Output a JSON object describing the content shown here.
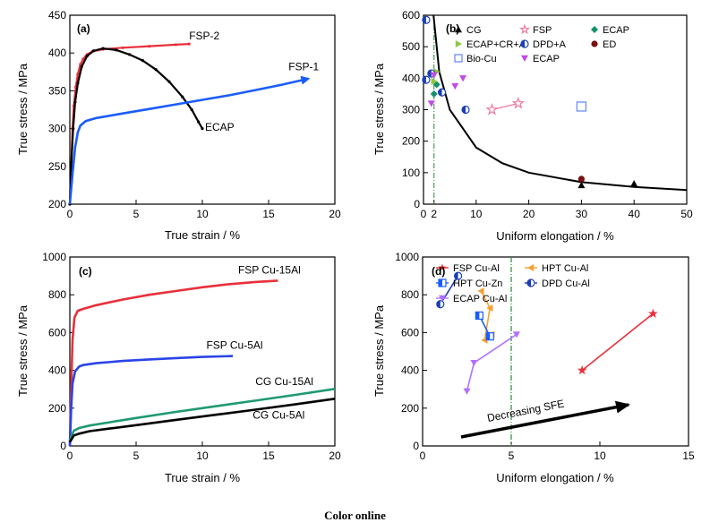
{
  "caption": "Color online",
  "chart_data": [
    {
      "panel": "(a)",
      "type": "line",
      "xlabel": "True strain / %",
      "ylabel": "True stress / MPa",
      "xlim": [
        0,
        20
      ],
      "ylim": [
        200,
        450
      ],
      "xticks": [
        0,
        5,
        10,
        15,
        20
      ],
      "yticks": [
        200,
        250,
        300,
        350,
        400,
        450
      ],
      "series": [
        {
          "name": "FSP-2",
          "color": "#e8303a",
          "marker": "dot",
          "points": [
            [
              0,
              200
            ],
            [
              0.1,
              250
            ],
            [
              0.2,
              300
            ],
            [
              0.3,
              330
            ],
            [
              0.45,
              355
            ],
            [
              0.6,
              372
            ],
            [
              0.8,
              385
            ],
            [
              1.0,
              392
            ],
            [
              1.3,
              398
            ],
            [
              1.7,
              402
            ],
            [
              2.5,
              405
            ],
            [
              4,
              407
            ],
            [
              6,
              409
            ],
            [
              8,
              411
            ],
            [
              9,
              412
            ]
          ]
        },
        {
          "name": "ECAP",
          "color": "#000000",
          "marker": "dot",
          "points": [
            [
              0,
              200
            ],
            [
              0.1,
              250
            ],
            [
              0.25,
              300
            ],
            [
              0.4,
              335
            ],
            [
              0.6,
              360
            ],
            [
              0.9,
              382
            ],
            [
              1.3,
              396
            ],
            [
              1.8,
              403
            ],
            [
              2.5,
              406
            ],
            [
              3.5,
              404
            ],
            [
              4.5,
              398
            ],
            [
              5.5,
              390
            ],
            [
              6.5,
              378
            ],
            [
              7.5,
              362
            ],
            [
              8.5,
              342
            ],
            [
              9.2,
              325
            ],
            [
              9.7,
              309
            ],
            [
              10,
              300
            ]
          ]
        },
        {
          "name": "FSP-1",
          "color": "#1a5cff",
          "marker": "none",
          "arrow": true,
          "points": [
            [
              0,
              200
            ],
            [
              0.2,
              240
            ],
            [
              0.4,
              275
            ],
            [
              0.6,
              295
            ],
            [
              0.8,
              304
            ],
            [
              1.2,
              310
            ],
            [
              2,
              314
            ],
            [
              4,
              320
            ],
            [
              6,
              326
            ],
            [
              8,
              332
            ],
            [
              10,
              338
            ],
            [
              12,
              344
            ],
            [
              14,
              351
            ],
            [
              16,
              358
            ],
            [
              18,
              366
            ]
          ]
        }
      ],
      "annotations": [
        {
          "text": "FSP-2",
          "x": 9.0,
          "y": 418
        },
        {
          "text": "FSP-1",
          "x": 16.5,
          "y": 377
        },
        {
          "text": "ECAP",
          "x": 10.2,
          "y": 297
        }
      ]
    },
    {
      "panel": "(b)",
      "type": "scatter",
      "xlabel": "Uniform elongation / %",
      "ylabel": "True stress / MPa",
      "xlim": [
        0,
        50
      ],
      "ylim": [
        0,
        600
      ],
      "xticks": [
        0,
        2,
        10,
        20,
        30,
        40,
        50
      ],
      "yticks": [
        0,
        100,
        200,
        300,
        400,
        500,
        600
      ],
      "legend": [
        {
          "name": "CG",
          "color": "#000000",
          "marker": "triangle"
        },
        {
          "name": "FSP",
          "color": "#f07aa0",
          "marker": "star-open"
        },
        {
          "name": "ECAP",
          "color": "#12906a",
          "marker": "diamond"
        },
        {
          "name": "ECAP+CR+A",
          "color": "#8ec63f",
          "marker": "tri-right"
        },
        {
          "name": "DPD+A",
          "color": "#1a3fb5",
          "marker": "half-circle"
        },
        {
          "name": "ED",
          "color": "#7a1010",
          "marker": "circle"
        },
        {
          "name": "Bio-Cu",
          "color": "#6a8cff",
          "marker": "square-open"
        },
        {
          "name": "ECAP",
          "color": "#c04be8",
          "marker": "tri-down"
        }
      ],
      "series": [
        {
          "name": "CG",
          "points": [
            [
              30,
              60
            ],
            [
              40,
              65
            ]
          ]
        },
        {
          "name": "FSP",
          "points": [
            [
              13,
              300
            ],
            [
              18,
              320
            ]
          ],
          "connected": true
        },
        {
          "name": "ECAP",
          "points": [
            [
              2,
              350
            ],
            [
              2.5,
              380
            ]
          ]
        },
        {
          "name": "ECAP+CR+A",
          "points": [
            [
              1.5,
              415
            ],
            [
              2.5,
              420
            ],
            [
              2,
              390
            ]
          ]
        },
        {
          "name": "DPD+A",
          "points": [
            [
              0.5,
              585
            ],
            [
              0.5,
              395
            ],
            [
              1.5,
              415
            ],
            [
              3.5,
              355
            ],
            [
              8,
              300
            ]
          ]
        },
        {
          "name": "ED",
          "points": [
            [
              30,
              80
            ]
          ]
        },
        {
          "name": "Bio-Cu",
          "points": [
            [
              30,
              310
            ]
          ]
        },
        {
          "name": "ECAP",
          "points": [
            [
              1.5,
              320
            ],
            [
              6,
              375
            ],
            [
              7.5,
              400
            ],
            [
              2,
              410
            ]
          ]
        }
      ],
      "fit_curve": "hyperbola",
      "fit_points": [
        [
          1.9,
          600
        ],
        [
          3,
          420
        ],
        [
          5,
          300
        ],
        [
          10,
          180
        ],
        [
          15,
          130
        ],
        [
          20,
          100
        ],
        [
          30,
          70
        ],
        [
          40,
          55
        ],
        [
          50,
          45
        ]
      ],
      "reference_line_x": 2
    },
    {
      "panel": "(c)",
      "type": "line",
      "xlabel": "True strain / %",
      "ylabel": "True stress / MPa",
      "xlim": [
        0,
        20
      ],
      "ylim": [
        0,
        1000
      ],
      "xticks": [
        0,
        5,
        10,
        15,
        20
      ],
      "yticks": [
        0,
        200,
        400,
        600,
        800,
        1000
      ],
      "series": [
        {
          "name": "FSP Cu-15Al",
          "color": "#e8303a",
          "points": [
            [
              0,
              0
            ],
            [
              0.1,
              300
            ],
            [
              0.2,
              560
            ],
            [
              0.35,
              680
            ],
            [
              0.6,
              715
            ],
            [
              1,
              725
            ],
            [
              2,
              745
            ],
            [
              4,
              775
            ],
            [
              6,
              800
            ],
            [
              8,
              820
            ],
            [
              10,
              840
            ],
            [
              12,
              856
            ],
            [
              14,
              868
            ],
            [
              15.7,
              875
            ]
          ]
        },
        {
          "name": "FSP Cu-5Al",
          "color": "#2a44e8",
          "points": [
            [
              0,
              0
            ],
            [
              0.1,
              200
            ],
            [
              0.2,
              330
            ],
            [
              0.4,
              395
            ],
            [
              0.7,
              420
            ],
            [
              1,
              428
            ],
            [
              2,
              438
            ],
            [
              4,
              450
            ],
            [
              6,
              458
            ],
            [
              8,
              465
            ],
            [
              10,
              471
            ],
            [
              12.3,
              476
            ]
          ]
        },
        {
          "name": "CG Cu-15Al",
          "color": "#1f9a6e",
          "points": [
            [
              0,
              30
            ],
            [
              0.3,
              80
            ],
            [
              0.7,
              95
            ],
            [
              1.5,
              108
            ],
            [
              3,
              125
            ],
            [
              5,
              148
            ],
            [
              8,
              180
            ],
            [
              11,
              210
            ],
            [
              14,
              240
            ],
            [
              17,
              270
            ],
            [
              20,
              302
            ]
          ]
        },
        {
          "name": "CG Cu-5Al",
          "color": "#000000",
          "points": [
            [
              0,
              20
            ],
            [
              0.3,
              55
            ],
            [
              0.7,
              65
            ],
            [
              1.5,
              78
            ],
            [
              3,
              92
            ],
            [
              5,
              110
            ],
            [
              8,
              138
            ],
            [
              11,
              165
            ],
            [
              14,
              192
            ],
            [
              17,
              220
            ],
            [
              20,
              250
            ]
          ]
        }
      ],
      "annotations": [
        {
          "text": "FSP Cu-15Al",
          "x": 12.7,
          "y": 912
        },
        {
          "text": "FSP Cu-5Al",
          "x": 10.3,
          "y": 515
        },
        {
          "text": "CG Cu-15Al",
          "x": 14.0,
          "y": 322
        },
        {
          "text": "CG Cu-5Al",
          "x": 13.8,
          "y": 145
        }
      ]
    },
    {
      "panel": "(d)",
      "type": "scatter",
      "xlabel": "Uniform elongation / %",
      "ylabel": "True stress / MPa",
      "xlim": [
        0,
        15
      ],
      "ylim": [
        0,
        1000
      ],
      "xticks": [
        0,
        5,
        10,
        15
      ],
      "yticks": [
        0,
        200,
        400,
        600,
        800,
        1000
      ],
      "legend": [
        {
          "name": "FSP Cu-Al",
          "color": "#e8303a",
          "marker": "star"
        },
        {
          "name": "HPT Cu-Al",
          "color": "#f5a030",
          "marker": "tri-left"
        },
        {
          "name": "HPT Cu-Zn",
          "color": "#1a5cff",
          "marker": "half-square"
        },
        {
          "name": "DPD Cu-Al",
          "color": "#1a3fb5",
          "marker": "half-circle"
        },
        {
          "name": "ECAP Cu-Al",
          "color": "#b270ff",
          "marker": "tri-down"
        }
      ],
      "series": [
        {
          "name": "FSP Cu-Al",
          "points": [
            [
              9,
              400
            ],
            [
              13,
              700
            ]
          ]
        },
        {
          "name": "HPT Cu-Al",
          "points": [
            [
              3.3,
              820
            ],
            [
              3.8,
              730
            ],
            [
              3.5,
              560
            ],
            [
              3.9,
              590
            ]
          ]
        },
        {
          "name": "HPT Cu-Zn",
          "points": [
            [
              3.2,
              690
            ],
            [
              3.8,
              580
            ]
          ]
        },
        {
          "name": "DPD Cu-Al",
          "points": [
            [
              1,
              750
            ],
            [
              2,
              900
            ]
          ]
        },
        {
          "name": "ECAP Cu-Al",
          "points": [
            [
              2.5,
              290
            ],
            [
              2.9,
              440
            ],
            [
              5.3,
              590
            ]
          ]
        }
      ],
      "reference_line_x": 5,
      "arrow_annotation": "Decreasing SFE"
    }
  ]
}
